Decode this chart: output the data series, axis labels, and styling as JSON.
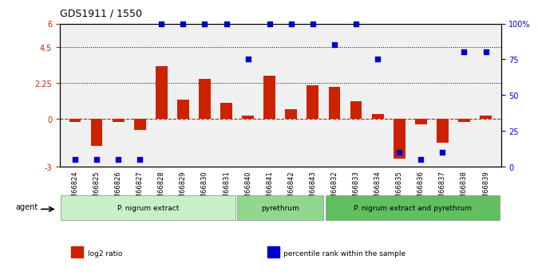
{
  "title": "GDS1911 / 1550",
  "samples": [
    "GSM66824",
    "GSM66825",
    "GSM66826",
    "GSM66827",
    "GSM66828",
    "GSM66829",
    "GSM66830",
    "GSM66831",
    "GSM66840",
    "GSM66841",
    "GSM66842",
    "GSM66843",
    "GSM66832",
    "GSM66833",
    "GSM66834",
    "GSM66835",
    "GSM66836",
    "GSM66837",
    "GSM66838",
    "GSM66839"
  ],
  "log2_ratio": [
    -0.2,
    -1.7,
    -0.2,
    -0.7,
    3.3,
    1.2,
    2.5,
    1.0,
    0.2,
    2.7,
    0.6,
    2.1,
    2.0,
    1.1,
    0.3,
    -2.5,
    -0.35,
    -1.5,
    -0.2,
    0.2
  ],
  "percentile": [
    5,
    5,
    5,
    5,
    100,
    100,
    100,
    100,
    75,
    100,
    100,
    100,
    85,
    100,
    75,
    10,
    5,
    10,
    80,
    80
  ],
  "ylim_left": [
    -3,
    6
  ],
  "ylim_right": [
    0,
    100
  ],
  "yticks_left": [
    -3,
    0,
    2.25,
    4.5,
    6
  ],
  "ytick_labels_left": [
    "-3",
    "0",
    "2.25",
    "4.5",
    "6"
  ],
  "yticks_right": [
    0,
    25,
    50,
    75,
    100
  ],
  "ytick_labels_right": [
    "0",
    "25",
    "50",
    "75",
    "100%"
  ],
  "hlines": [
    4.5,
    2.25
  ],
  "groups": [
    {
      "label": "P. nigrum extract",
      "start": 0,
      "end": 8,
      "color": "#c8f0c8"
    },
    {
      "label": "pyrethrum",
      "start": 8,
      "end": 12,
      "color": "#90d890"
    },
    {
      "label": "P. nigrum extract and pyrethrum",
      "start": 12,
      "end": 20,
      "color": "#60c060"
    }
  ],
  "bar_color": "#cc2200",
  "dot_color": "#0000cc",
  "zero_line_color": "#cc2200",
  "bg_color": "#ffffff",
  "agent_label": "agent",
  "legend_items": [
    {
      "color": "#cc2200",
      "label": "log2 ratio"
    },
    {
      "color": "#0000cc",
      "label": "percentile rank within the sample"
    }
  ]
}
